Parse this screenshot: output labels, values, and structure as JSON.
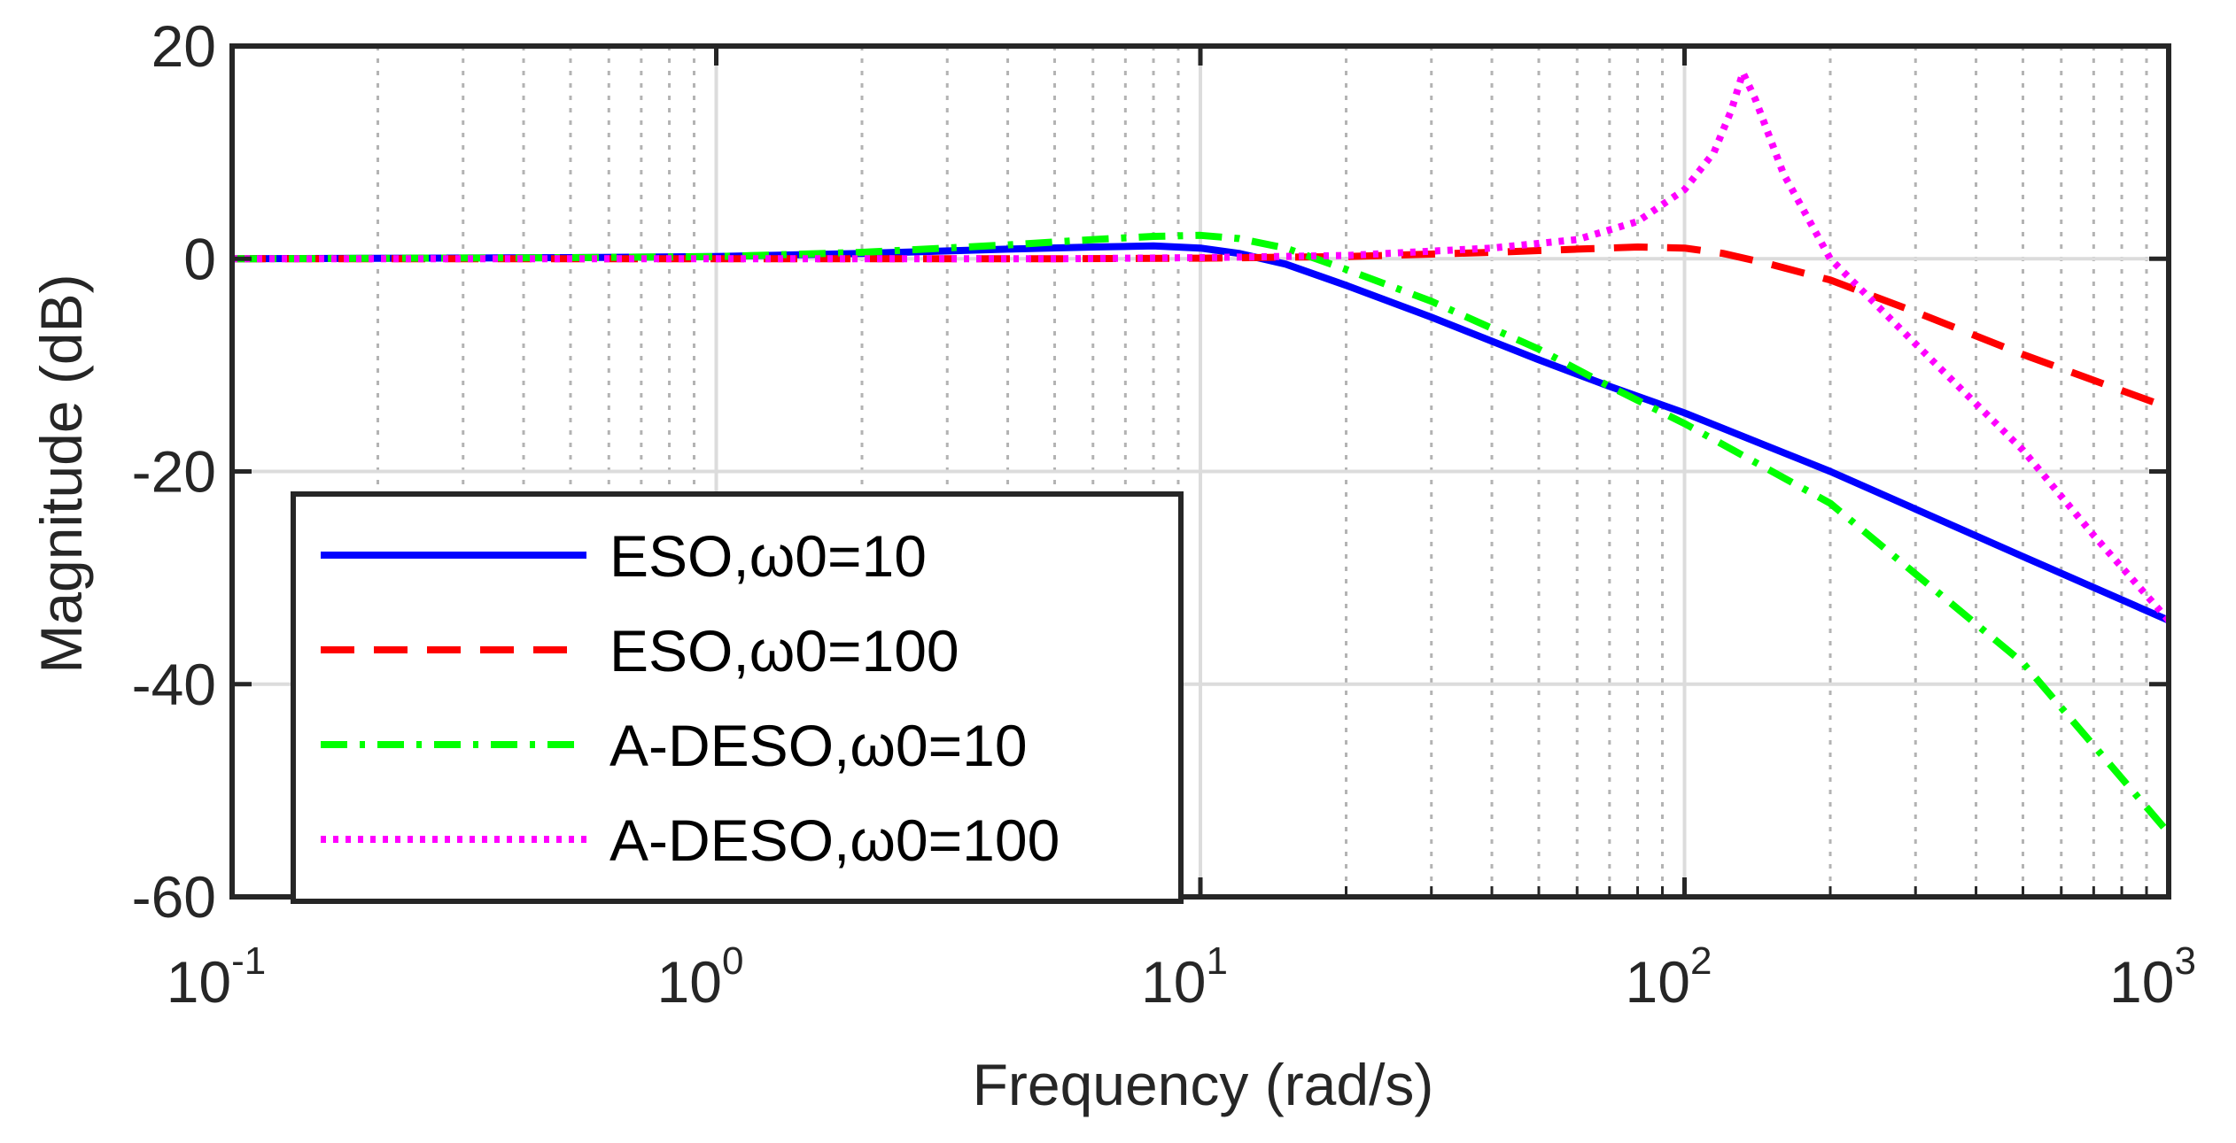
{
  "chart_data": {
    "type": "line",
    "title": "",
    "xlabel": "Frequency (rad/s)",
    "ylabel": "Magnitude (dB)",
    "xscale": "log",
    "xlim": [
      0.1,
      1000
    ],
    "ylim": [
      -60,
      20
    ],
    "x_ticks": [
      {
        "value": 0.1,
        "base": "10",
        "exp": "-1"
      },
      {
        "value": 1,
        "base": "10",
        "exp": "0"
      },
      {
        "value": 10,
        "base": "10",
        "exp": "1"
      },
      {
        "value": 100,
        "base": "10",
        "exp": "2"
      },
      {
        "value": 1000,
        "base": "10",
        "exp": "3"
      }
    ],
    "y_ticks": [
      {
        "value": 20,
        "label": "20"
      },
      {
        "value": 0,
        "label": "0"
      },
      {
        "value": -20,
        "label": "-20"
      },
      {
        "value": -40,
        "label": "-40"
      },
      {
        "value": -60,
        "label": "-60"
      }
    ],
    "grid": true,
    "legend_location": "bottom-left",
    "series": [
      {
        "name": "ESO,ω0=10",
        "color": "#0000ff",
        "style": "solid",
        "points": [
          [
            0.1,
            0
          ],
          [
            0.5,
            0.1
          ],
          [
            1,
            0.2
          ],
          [
            2,
            0.5
          ],
          [
            4,
            0.9
          ],
          [
            6,
            1.1
          ],
          [
            8,
            1.2
          ],
          [
            10,
            1.0
          ],
          [
            12,
            0.5
          ],
          [
            15,
            -0.5
          ],
          [
            20,
            -2.5
          ],
          [
            30,
            -5.5
          ],
          [
            50,
            -9.5
          ],
          [
            70,
            -12
          ],
          [
            100,
            -14.5
          ],
          [
            200,
            -20
          ],
          [
            500,
            -28
          ],
          [
            1000,
            -34
          ]
        ]
      },
      {
        "name": "ESO,ω0=100",
        "color": "#ff0000",
        "style": "dashed",
        "points": [
          [
            0.1,
            0
          ],
          [
            1,
            0
          ],
          [
            5,
            0
          ],
          [
            10,
            0.05
          ],
          [
            20,
            0.2
          ],
          [
            40,
            0.6
          ],
          [
            60,
            0.9
          ],
          [
            80,
            1.1
          ],
          [
            100,
            1.0
          ],
          [
            120,
            0.5
          ],
          [
            150,
            -0.5
          ],
          [
            200,
            -2
          ],
          [
            300,
            -5
          ],
          [
            500,
            -9
          ],
          [
            1000,
            -14
          ]
        ]
      },
      {
        "name": "A-DESO,ω0=10",
        "color": "#00ff00",
        "style": "dashdot",
        "points": [
          [
            0.1,
            0
          ],
          [
            0.5,
            0.1
          ],
          [
            1,
            0.2
          ],
          [
            2,
            0.6
          ],
          [
            4,
            1.3
          ],
          [
            6,
            1.8
          ],
          [
            8,
            2.1
          ],
          [
            10,
            2.2
          ],
          [
            12,
            1.9
          ],
          [
            15,
            1.0
          ],
          [
            20,
            -1
          ],
          [
            30,
            -4
          ],
          [
            50,
            -8.5
          ],
          [
            70,
            -12
          ],
          [
            100,
            -15.5
          ],
          [
            200,
            -23
          ],
          [
            500,
            -38
          ],
          [
            1000,
            -54
          ]
        ]
      },
      {
        "name": "A-DESO,ω0=100",
        "color": "#ff00ff",
        "style": "dotted",
        "points": [
          [
            0.1,
            0
          ],
          [
            1,
            0
          ],
          [
            5,
            0
          ],
          [
            10,
            0.1
          ],
          [
            20,
            0.3
          ],
          [
            40,
            1
          ],
          [
            60,
            1.8
          ],
          [
            80,
            3.5
          ],
          [
            100,
            6.5
          ],
          [
            115,
            10
          ],
          [
            125,
            14
          ],
          [
            132,
            17.5
          ],
          [
            140,
            15
          ],
          [
            160,
            8
          ],
          [
            200,
            0
          ],
          [
            300,
            -8
          ],
          [
            500,
            -18
          ],
          [
            700,
            -26
          ],
          [
            1000,
            -34
          ]
        ]
      }
    ]
  }
}
